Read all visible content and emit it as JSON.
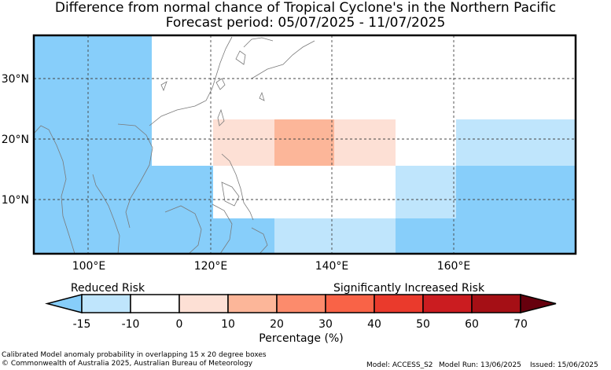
{
  "title": "Difference from normal chance of Tropical Cyclone's in the Northern Pacific",
  "subtitle": "Forecast period: 05/07/2025 - 11/07/2025",
  "map": {
    "lon_ticks": [
      "100°E",
      "120°E",
      "140°E",
      "160°E"
    ],
    "lat_ticks": [
      "30°N",
      "20°N",
      "10°N"
    ]
  },
  "legend": {
    "left_label": "Reduced Risk",
    "right_label": "Significantly Increased Risk",
    "ticks": [
      "-15",
      "-10",
      "0",
      "10",
      "20",
      "30",
      "40",
      "50",
      "60",
      "70"
    ],
    "colors": [
      "#87cefa",
      "#bfe5fc",
      "#ffffff",
      "#fde0d5",
      "#fcb699",
      "#fc8b6c",
      "#f96347",
      "#ea3a2c",
      "#cb1c20",
      "#a50f15",
      "#67000d"
    ],
    "axis_label": "Percentage (%)"
  },
  "footer": {
    "line1": "Calibrated Model anomaly probability in overlapping 15 x 20 degree boxes",
    "line2": "© Commonwealth of Australia 2025, Australian Bureau of Meteorology",
    "model": "Model: ACCESS_S2",
    "run": "Model Run: 13/06/2025",
    "issued": "Issued: 15/06/2025"
  }
}
